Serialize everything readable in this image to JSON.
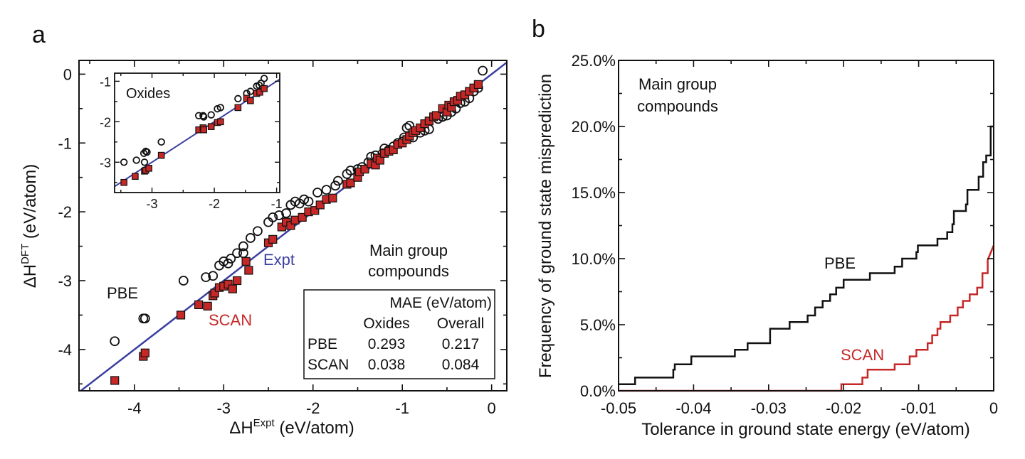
{
  "chart_data": [
    {
      "panel_label": "a",
      "type": "scatter",
      "xlabel": "ΔH",
      "xlabel_sup": "Expt",
      "xlabel_unit": " (eV/atom)",
      "ylabel": "ΔH",
      "ylabel_sup": "DFT",
      "ylabel_unit": " (eV/atom)",
      "xlim": [
        -4.62,
        0.17
      ],
      "ylim": [
        -4.6,
        0.2
      ],
      "xticks": [
        -4,
        -3,
        -2,
        -1,
        0
      ],
      "yticks": [
        0,
        -1,
        -2,
        -3,
        -4
      ],
      "reference_line": {
        "name": "Expt",
        "color": "#3a3fa0",
        "slope": 1,
        "intercept": 0
      },
      "annotations": {
        "pbe": "PBE",
        "scan": "SCAN",
        "expt": "Expt",
        "group_line1": "Main group",
        "group_line2": "compounds"
      },
      "mae_table": {
        "header": "MAE (eV/atom)",
        "columns": [
          "Oxides",
          "Overall"
        ],
        "rows": [
          {
            "name": "PBE",
            "values": [
              "0.293",
              "0.217"
            ]
          },
          {
            "name": "SCAN",
            "values": [
              "0.038",
              "0.084"
            ]
          }
        ]
      },
      "series": [
        {
          "name": "PBE",
          "marker": "open-circle",
          "color": "#111111",
          "points": [
            [
              -4.22,
              -3.88
            ],
            [
              -3.88,
              -3.55
            ],
            [
              -3.9,
              -3.55
            ],
            [
              -3.45,
              -3.0
            ],
            [
              -3.2,
              -2.95
            ],
            [
              -3.12,
              -2.93
            ],
            [
              -3.05,
              -2.78
            ],
            [
              -3.0,
              -2.72
            ],
            [
              -2.95,
              -2.75
            ],
            [
              -2.92,
              -2.68
            ],
            [
              -2.85,
              -2.6
            ],
            [
              -2.78,
              -2.6
            ],
            [
              -2.78,
              -2.5
            ],
            [
              -2.7,
              -2.38
            ],
            [
              -2.62,
              -2.28
            ],
            [
              -2.5,
              -2.15
            ],
            [
              -2.45,
              -2.08
            ],
            [
              -2.38,
              -2.05
            ],
            [
              -2.3,
              -2.02
            ],
            [
              -2.25,
              -1.9
            ],
            [
              -2.2,
              -1.85
            ],
            [
              -2.15,
              -1.88
            ],
            [
              -2.1,
              -1.82
            ],
            [
              -2.05,
              -1.85
            ],
            [
              -1.95,
              -1.72
            ],
            [
              -1.85,
              -1.68
            ],
            [
              -1.75,
              -1.62
            ],
            [
              -1.72,
              -1.55
            ],
            [
              -1.62,
              -1.45
            ],
            [
              -1.58,
              -1.4
            ],
            [
              -1.5,
              -1.38
            ],
            [
              -1.45,
              -1.35
            ],
            [
              -1.38,
              -1.28
            ],
            [
              -1.35,
              -1.2
            ],
            [
              -1.3,
              -1.18
            ],
            [
              -1.22,
              -1.15
            ],
            [
              -1.2,
              -1.08
            ],
            [
              -1.15,
              -1.1
            ],
            [
              -1.1,
              -1.05
            ],
            [
              -1.05,
              -1.0
            ],
            [
              -1.0,
              -0.98
            ],
            [
              -0.98,
              -0.92
            ],
            [
              -0.95,
              -0.78
            ],
            [
              -0.92,
              -0.75
            ],
            [
              -0.88,
              -0.92
            ],
            [
              -0.8,
              -0.85
            ],
            [
              -0.75,
              -0.82
            ],
            [
              -0.7,
              -0.8
            ],
            [
              -0.6,
              -0.65
            ],
            [
              -0.55,
              -0.62
            ],
            [
              -0.5,
              -0.6
            ],
            [
              -0.45,
              -0.55
            ],
            [
              -0.4,
              -0.5
            ],
            [
              -0.35,
              -0.42
            ],
            [
              -0.3,
              -0.4
            ],
            [
              -0.25,
              -0.35
            ],
            [
              -0.2,
              -0.25
            ],
            [
              -0.15,
              -0.2
            ],
            [
              -0.1,
              0.05
            ]
          ]
        },
        {
          "name": "SCAN",
          "marker": "filled-square",
          "color": "#c62828",
          "points": [
            [
              -4.22,
              -4.45
            ],
            [
              -3.9,
              -4.1
            ],
            [
              -3.88,
              -4.05
            ],
            [
              -3.48,
              -3.5
            ],
            [
              -3.28,
              -3.35
            ],
            [
              -3.18,
              -3.37
            ],
            [
              -3.12,
              -3.22
            ],
            [
              -3.1,
              -3.18
            ],
            [
              -3.05,
              -3.1
            ],
            [
              -3.0,
              -3.08
            ],
            [
              -2.95,
              -3.05
            ],
            [
              -2.9,
              -3.12
            ],
            [
              -2.85,
              -3.0
            ],
            [
              -2.75,
              -2.72
            ],
            [
              -2.72,
              -2.85
            ],
            [
              -2.5,
              -2.45
            ],
            [
              -2.45,
              -2.4
            ],
            [
              -2.35,
              -2.22
            ],
            [
              -2.3,
              -2.15
            ],
            [
              -2.25,
              -2.2
            ],
            [
              -2.2,
              -2.12
            ],
            [
              -2.12,
              -2.08
            ],
            [
              -2.05,
              -2.0
            ],
            [
              -1.98,
              -1.98
            ],
            [
              -1.92,
              -1.9
            ],
            [
              -1.85,
              -1.82
            ],
            [
              -1.78,
              -1.8
            ],
            [
              -1.62,
              -1.6
            ],
            [
              -1.58,
              -1.58
            ],
            [
              -1.5,
              -1.5
            ],
            [
              -1.48,
              -1.42
            ],
            [
              -1.42,
              -1.38
            ],
            [
              -1.35,
              -1.3
            ],
            [
              -1.3,
              -1.32
            ],
            [
              -1.28,
              -1.22
            ],
            [
              -1.25,
              -1.25
            ],
            [
              -1.2,
              -1.15
            ],
            [
              -1.15,
              -1.12
            ],
            [
              -1.1,
              -1.1
            ],
            [
              -1.05,
              -1.02
            ],
            [
              -1.0,
              -1.0
            ],
            [
              -0.95,
              -0.95
            ],
            [
              -0.92,
              -0.9
            ],
            [
              -0.88,
              -0.85
            ],
            [
              -0.85,
              -0.82
            ],
            [
              -0.8,
              -0.78
            ],
            [
              -0.75,
              -0.72
            ],
            [
              -0.7,
              -0.68
            ],
            [
              -0.65,
              -0.62
            ],
            [
              -0.62,
              -0.6
            ],
            [
              -0.55,
              -0.5
            ],
            [
              -0.5,
              -0.55
            ],
            [
              -0.48,
              -0.45
            ],
            [
              -0.45,
              -0.48
            ],
            [
              -0.42,
              -0.4
            ],
            [
              -0.38,
              -0.38
            ],
            [
              -0.35,
              -0.32
            ],
            [
              -0.3,
              -0.3
            ],
            [
              -0.25,
              -0.25
            ],
            [
              -0.2,
              -0.2
            ],
            [
              -0.15,
              -0.15
            ]
          ]
        }
      ],
      "inset": {
        "title": "Oxides",
        "xlim": [
          -3.6,
          -0.95
        ],
        "ylim": [
          -3.75,
          -0.8
        ],
        "xticks": [
          -3,
          -2,
          -1
        ],
        "yticks": [
          -1,
          -2,
          -3
        ],
        "series": [
          {
            "name": "PBE",
            "marker": "open-circle",
            "points": [
              [
                -3.45,
                -3.0
              ],
              [
                -3.25,
                -2.95
              ],
              [
                -3.12,
                -3.0
              ],
              [
                -3.13,
                -2.78
              ],
              [
                -3.1,
                -2.73
              ],
              [
                -3.08,
                -2.75
              ],
              [
                -2.85,
                -2.5
              ],
              [
                -2.25,
                -1.85
              ],
              [
                -2.18,
                -1.85
              ],
              [
                -2.17,
                -1.88
              ],
              [
                -2.05,
                -1.83
              ],
              [
                -1.95,
                -1.68
              ],
              [
                -1.9,
                -1.65
              ],
              [
                -1.62,
                -1.43
              ],
              [
                -1.48,
                -1.3
              ],
              [
                -1.42,
                -1.25
              ],
              [
                -1.32,
                -1.12
              ],
              [
                -1.28,
                -1.1
              ],
              [
                -1.25,
                -1.05
              ],
              [
                -1.2,
                -0.93
              ]
            ]
          },
          {
            "name": "SCAN",
            "marker": "filled-square",
            "points": [
              [
                -3.45,
                -3.5
              ],
              [
                -3.27,
                -3.35
              ],
              [
                -3.12,
                -3.22
              ],
              [
                -3.1,
                -3.2
              ],
              [
                -3.05,
                -3.15
              ],
              [
                -2.85,
                -2.83
              ],
              [
                -2.25,
                -2.2
              ],
              [
                -2.18,
                -2.15
              ],
              [
                -2.17,
                -2.2
              ],
              [
                -2.05,
                -2.12
              ],
              [
                -1.95,
                -2.02
              ],
              [
                -1.9,
                -2.0
              ],
              [
                -1.62,
                -1.65
              ],
              [
                -1.48,
                -1.42
              ],
              [
                -1.42,
                -1.48
              ],
              [
                -1.32,
                -1.3
              ],
              [
                -1.27,
                -1.27
              ],
              [
                -1.2,
                -1.18
              ]
            ]
          }
        ]
      }
    },
    {
      "panel_label": "b",
      "type": "line",
      "step": true,
      "xlabel": "Tolerance in ground state energy (eV/atom)",
      "ylabel": "Frequency of ground state misprediction",
      "xlim": [
        -0.05,
        0
      ],
      "ylim": [
        0,
        25
      ],
      "xticks": [
        "-0.05",
        "-0.04",
        "-0.03",
        "-0.02",
        "-0.01",
        "0"
      ],
      "xtick_values": [
        -0.05,
        -0.04,
        -0.03,
        -0.02,
        -0.01,
        0
      ],
      "yticks": [
        "0.0%",
        "5.0%",
        "10.0%",
        "15.0%",
        "20.0%",
        "25.0%"
      ],
      "ytick_values": [
        0,
        5,
        10,
        15,
        20,
        25
      ],
      "annotations": {
        "group_line1": "Main group",
        "group_line2": "compounds",
        "pbe": "PBE",
        "scan": "SCAN"
      },
      "series": [
        {
          "name": "PBE",
          "color": "#111111",
          "x": [
            -0.05,
            -0.0478,
            -0.0478,
            -0.0427,
            -0.0427,
            -0.0425,
            -0.0425,
            -0.0403,
            -0.0403,
            -0.0345,
            -0.0345,
            -0.0328,
            -0.0328,
            -0.0298,
            -0.0298,
            -0.0272,
            -0.0272,
            -0.0248,
            -0.0248,
            -0.0238,
            -0.0238,
            -0.0228,
            -0.0228,
            -0.0218,
            -0.0218,
            -0.021,
            -0.021,
            -0.02,
            -0.02,
            -0.0192,
            -0.0192,
            -0.0165,
            -0.0165,
            -0.0132,
            -0.0132,
            -0.0122,
            -0.0122,
            -0.0103,
            -0.0103,
            -0.0101,
            -0.0101,
            -0.0099,
            -0.0099,
            -0.0075,
            -0.0075,
            -0.0062,
            -0.0062,
            -0.0055,
            -0.0055,
            -0.0053,
            -0.0053,
            -0.0037,
            -0.0037,
            -0.0035,
            -0.0035,
            -0.002,
            -0.002,
            -0.0014,
            -0.0014,
            -0.001,
            -0.001,
            -0.0004,
            -0.0004,
            0
          ],
          "y": [
            0.5,
            0.5,
            1.0,
            1.0,
            1.6,
            1.6,
            2.0,
            2.0,
            2.6,
            2.6,
            3.1,
            3.1,
            3.6,
            3.6,
            4.7,
            4.7,
            5.2,
            5.2,
            5.7,
            5.7,
            6.3,
            6.3,
            6.8,
            6.8,
            7.3,
            7.3,
            7.8,
            7.8,
            8.4,
            8.4,
            8.4,
            8.4,
            8.9,
            8.9,
            9.4,
            9.4,
            10.0,
            10.0,
            10.5,
            10.5,
            11.0,
            11.0,
            11.0,
            11.0,
            11.5,
            11.5,
            12.0,
            12.0,
            12.6,
            12.6,
            13.6,
            13.6,
            14.1,
            14.1,
            15.2,
            15.2,
            16.2,
            16.2,
            17.3,
            17.3,
            17.8,
            17.8,
            20.0,
            20.0
          ]
        },
        {
          "name": "SCAN",
          "color": "#c62828",
          "x": [
            -0.05,
            -0.0203,
            -0.0203,
            -0.0175,
            -0.0175,
            -0.0168,
            -0.0168,
            -0.0132,
            -0.0132,
            -0.0112,
            -0.0112,
            -0.0103,
            -0.0103,
            -0.0088,
            -0.0088,
            -0.0082,
            -0.0082,
            -0.0075,
            -0.0075,
            -0.0071,
            -0.0071,
            -0.0058,
            -0.0058,
            -0.0048,
            -0.0048,
            -0.0041,
            -0.0041,
            -0.0032,
            -0.0032,
            -0.0022,
            -0.0022,
            -0.0015,
            -0.0015,
            -0.0008,
            -0.0008,
            0
          ],
          "y": [
            0.0,
            0.0,
            0.5,
            0.5,
            1.0,
            1.0,
            1.6,
            1.6,
            2.0,
            2.0,
            2.6,
            2.6,
            3.1,
            3.1,
            3.6,
            3.6,
            4.2,
            4.2,
            4.7,
            4.7,
            5.2,
            5.2,
            5.7,
            5.7,
            6.3,
            6.3,
            6.8,
            6.8,
            7.3,
            7.3,
            7.8,
            7.8,
            8.9,
            8.9,
            9.9,
            11.0
          ]
        }
      ]
    }
  ]
}
